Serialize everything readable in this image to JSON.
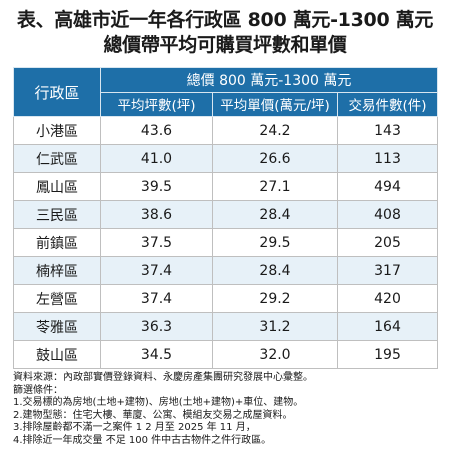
{
  "title": {
    "line1": "表、高雄市近一年各行政區 800 萬元-1300 萬元",
    "line2": "總價帶平均可購買坪數和單價"
  },
  "table": {
    "region_header": "行政區",
    "group_header": "總價 800 萬元-1300 萬元",
    "columns": [
      "平均坪數(坪)",
      "平均單價(萬元/坪)",
      "交易件數(件)"
    ],
    "rows": [
      {
        "region": "小港區",
        "area": "43.6",
        "price": "24.2",
        "count": "143"
      },
      {
        "region": "仁武區",
        "area": "41.0",
        "price": "26.6",
        "count": "113"
      },
      {
        "region": "鳳山區",
        "area": "39.5",
        "price": "27.1",
        "count": "494"
      },
      {
        "region": "三民區",
        "area": "38.6",
        "price": "28.4",
        "count": "408"
      },
      {
        "region": "前鎮區",
        "area": "37.5",
        "price": "29.5",
        "count": "205"
      },
      {
        "region": "楠梓區",
        "area": "37.4",
        "price": "28.4",
        "count": "317"
      },
      {
        "region": "左營區",
        "area": "37.4",
        "price": "29.2",
        "count": "420"
      },
      {
        "region": "苓雅區",
        "area": "36.3",
        "price": "31.2",
        "count": "164"
      },
      {
        "region": "鼓山區",
        "area": "34.5",
        "price": "32.0",
        "count": "195"
      }
    ]
  },
  "notes": [
    "資料來源：內政部實價登錄資料、永慶房產集團研究發展中心彙整。",
    "篩選條件：",
    "1.交易標的為房地(土地+建物)、房地(土地+建物)+車位、建物。",
    "2.建物型態：住宅大樓、華廈、公寓、模組友交易之成屋資料。",
    "3.排除屋齡都不滿一之案件 1 2 月至 2025 年 11 月，",
    "4.排除近一年成交量 不足 100 件中古古物件之件行政區。"
  ],
  "colors": {
    "header_bg": "#1e6fa8",
    "stripe_bg": "#e7f1f8"
  }
}
